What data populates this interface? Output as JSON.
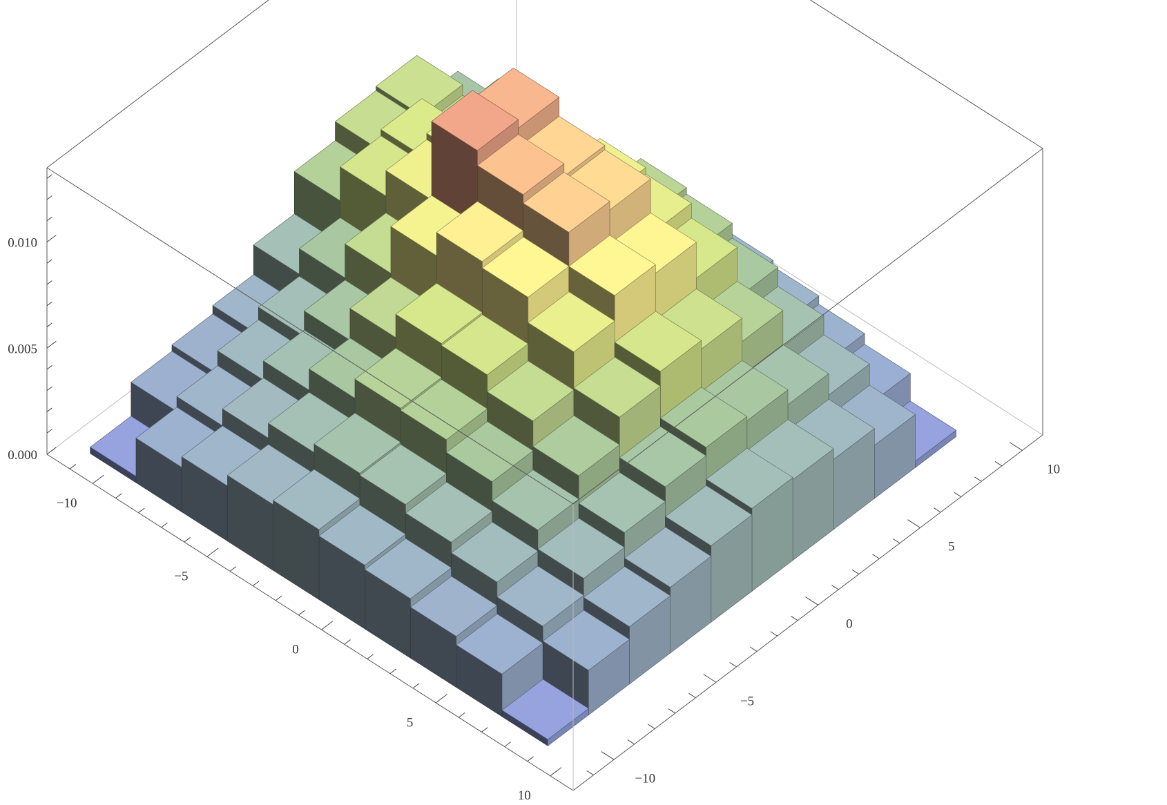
{
  "chart_data": {
    "type": "histogram3d",
    "title": "",
    "xlabel": "",
    "ylabel": "",
    "zlabel": "",
    "xlim": [
      -12,
      11
    ],
    "ylim": [
      -12,
      11
    ],
    "zlim": [
      0,
      0.0135
    ],
    "x_ticks": [
      -10,
      -5,
      0,
      5,
      10
    ],
    "y_ticks": [
      -10,
      -5,
      0,
      5,
      10
    ],
    "z_ticks": [
      0.0,
      0.005,
      0.01
    ],
    "x_tick_labels": [
      "−10",
      "−5",
      "0",
      "5",
      "10"
    ],
    "y_tick_labels": [
      "−10",
      "−5",
      "0",
      "5",
      "10"
    ],
    "z_tick_labels": [
      "0.000",
      "0.005",
      "0.010"
    ],
    "bin_width": 2,
    "bin_edges": [
      -11,
      -9,
      -7,
      -5,
      -3,
      -1,
      1,
      3,
      5,
      7,
      9
    ],
    "grid": false,
    "values": [
      [
        0.0003,
        0.0019,
        0.0022,
        0.0026,
        0.004,
        0.006,
        0.0069,
        0.0071,
        0.0049,
        0.0031
      ],
      [
        0.0021,
        0.0026,
        0.0033,
        0.0039,
        0.0052,
        0.0076,
        0.0079,
        0.0066,
        0.0048,
        0.0029
      ],
      [
        0.0026,
        0.0034,
        0.0042,
        0.0051,
        0.0068,
        0.0088,
        0.0091,
        0.0073,
        0.0052,
        0.0028
      ],
      [
        0.0031,
        0.0041,
        0.0052,
        0.0066,
        0.009,
        0.0125,
        0.0121,
        0.0083,
        0.0058,
        0.0027
      ],
      [
        0.0033,
        0.0045,
        0.0061,
        0.0077,
        0.0101,
        0.0118,
        0.0112,
        0.0087,
        0.0063,
        0.003
      ],
      [
        0.003,
        0.0044,
        0.006,
        0.0076,
        0.0098,
        0.0114,
        0.011,
        0.0084,
        0.006,
        0.0028
      ],
      [
        0.0028,
        0.004,
        0.0054,
        0.0068,
        0.0086,
        0.0098,
        0.0094,
        0.0077,
        0.0053,
        0.0025
      ],
      [
        0.0024,
        0.0035,
        0.0045,
        0.0056,
        0.0069,
        0.0076,
        0.0072,
        0.0061,
        0.0044,
        0.0021
      ],
      [
        0.002,
        0.0028,
        0.0036,
        0.0043,
        0.005,
        0.0054,
        0.0052,
        0.0045,
        0.0035,
        0.0016
      ],
      [
        0.0003,
        0.0021,
        0.0027,
        0.0031,
        0.0036,
        0.0039,
        0.0038,
        0.0033,
        0.0025,
        0.0003
      ]
    ]
  }
}
